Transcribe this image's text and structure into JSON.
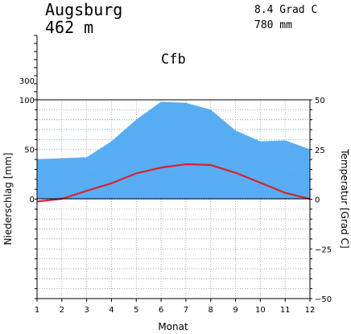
{
  "station": {
    "name": "Augsburg",
    "elevation": "462 m",
    "mean_temp": "8.4 Grad C",
    "annual_precip": "780 mm",
    "climate_class": "Cfb"
  },
  "chart_data": {
    "type": "area",
    "xlabel": "Monat",
    "ylabel_left": "Niederschlag [mm]",
    "ylabel_right": "Temperatur [Grad C]",
    "categories": [
      1,
      2,
      3,
      4,
      5,
      6,
      7,
      8,
      9,
      10,
      11,
      12
    ],
    "category_labels": [
      "1",
      "2",
      "3",
      "4",
      "5",
      "6",
      "7",
      "8",
      "9",
      "10",
      "11",
      "12"
    ],
    "precip_ylim": [
      0,
      100
    ],
    "temp_ylim": [
      -50,
      50
    ],
    "left_tick_labels": [
      {
        "value": 300,
        "label": "300"
      },
      {
        "value": 100,
        "label": "100"
      },
      {
        "value": 50,
        "label": "50"
      },
      {
        "value": 0,
        "label": "0"
      }
    ],
    "right_tick_labels": [
      {
        "value": 50,
        "label": "50"
      },
      {
        "value": 25,
        "label": "25"
      },
      {
        "value": 0,
        "label": "0"
      },
      {
        "value": -25,
        "label": "−25"
      },
      {
        "value": -50,
        "label": "−50"
      }
    ],
    "grid": true,
    "series": [
      {
        "key": "precipitation",
        "values": [
          40,
          41,
          42,
          58,
          80,
          98,
          97,
          90,
          69,
          58,
          59,
          50
        ],
        "color": "#4ea9f2"
      },
      {
        "key": "temperature",
        "values": [
          -1.2,
          0.2,
          4.2,
          8.0,
          13.0,
          15.9,
          17.6,
          17.2,
          13.3,
          8.3,
          3.2,
          0.1
        ],
        "color": "#d8202a"
      }
    ]
  }
}
